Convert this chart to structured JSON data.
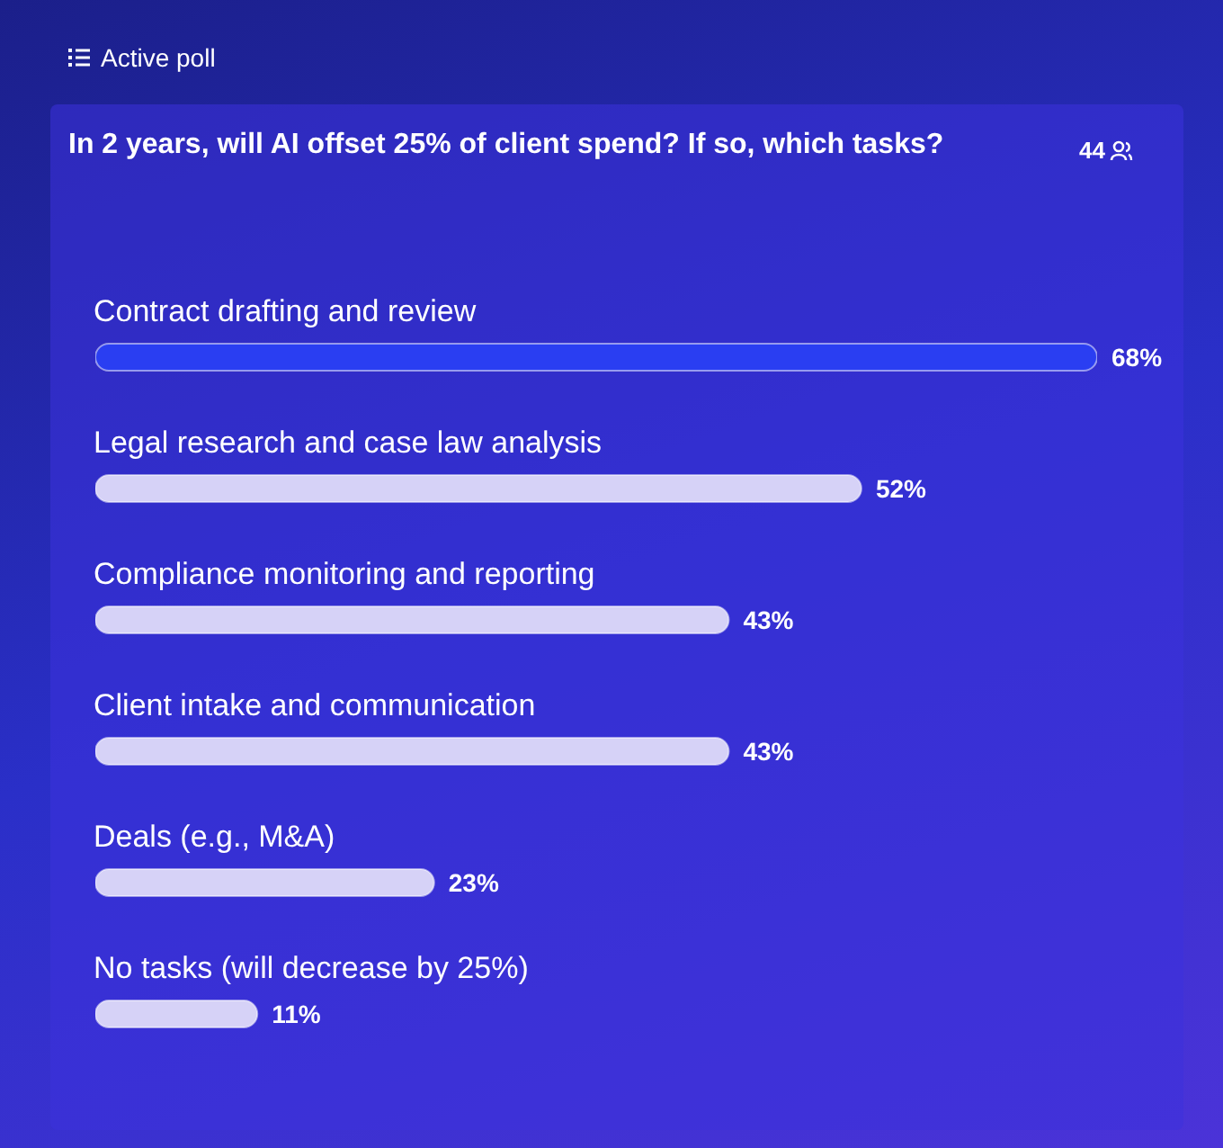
{
  "chart_data": {
    "type": "bar",
    "orientation": "horizontal",
    "title": "In 2 years, will AI offset 25% of client spend? If so, which tasks?",
    "annotations": [
      "Active poll",
      "44"
    ],
    "categories": [
      "Contract drafting and review",
      "Legal research and case law analysis",
      "Compliance monitoring and reporting",
      "Client intake and communication",
      "Deals (e.g., M&A)",
      "No tasks (will decrease by 25%)"
    ],
    "values": [
      68,
      52,
      43,
      43,
      23,
      11
    ],
    "colors": [
      "#2a3ef2",
      "#d6d2f7",
      "#d6d2f7",
      "#d6d2f7",
      "#d6d2f7",
      "#d6d2f7"
    ],
    "value_labels": [
      "68%",
      "52%",
      "43%",
      "43%",
      "23%",
      "11%"
    ],
    "legend": false,
    "grid": false
  }
}
